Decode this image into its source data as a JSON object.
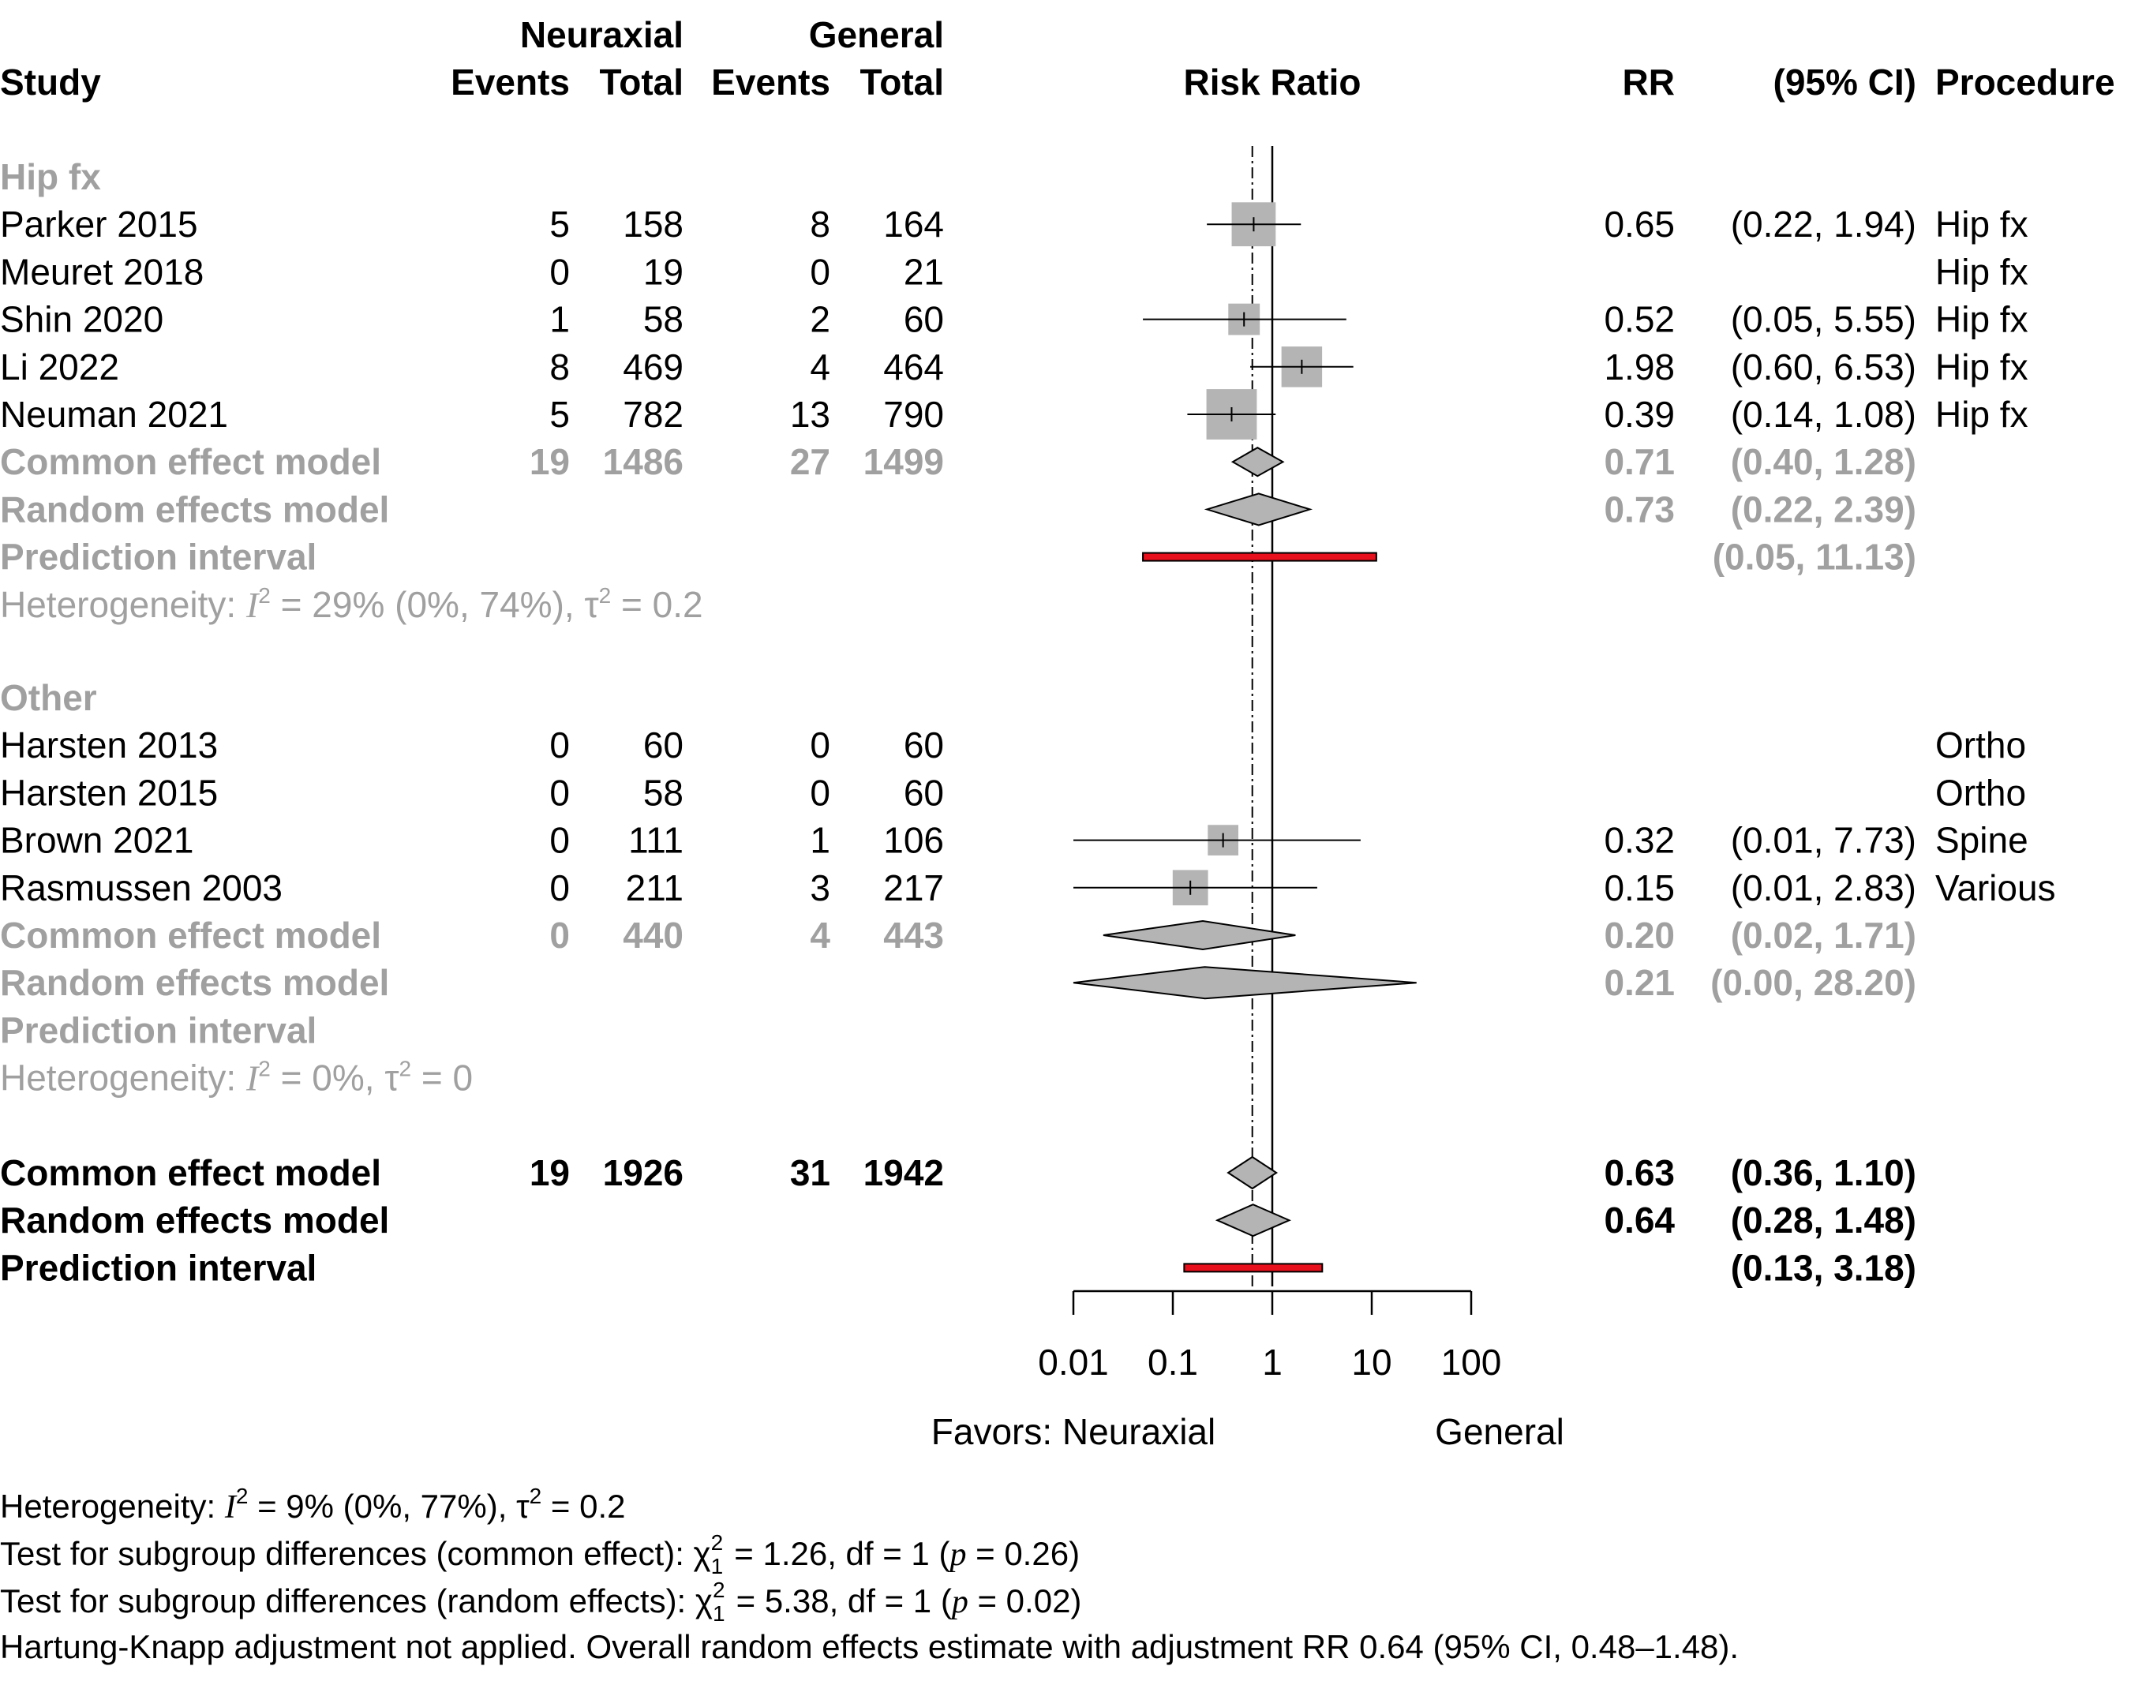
{
  "chart_data": {
    "type": "forest",
    "measure": "Risk Ratio",
    "x_scale": "log10",
    "xlim": [
      0.01,
      100
    ],
    "headers": {
      "group_a": "Neuraxial",
      "group_b": "General",
      "study": "Study",
      "events": "Events",
      "total": "Total",
      "risk_ratio": "Risk Ratio",
      "rr": "RR",
      "ci": "(95% CI)",
      "procedure": "Procedure"
    },
    "x_ticks": [
      {
        "value": 0.01,
        "label": "0.01"
      },
      {
        "value": 0.1,
        "label": "0.1"
      },
      {
        "value": 1,
        "label": "1"
      },
      {
        "value": 10,
        "label": "10"
      },
      {
        "value": 100,
        "label": "100"
      }
    ],
    "favors_left": "Favors: Neuraxial",
    "favors_right": "General",
    "reference_line": 1,
    "common_effect_line": 0.63,
    "subgroups": [
      {
        "name": "Hip fx",
        "studies": [
          {
            "study": "Parker 2015",
            "e1": "5",
            "n1": "158",
            "e2": "8",
            "n2": "164",
            "rr": 0.65,
            "lo": 0.22,
            "hi": 1.94,
            "rr_text": "0.65",
            "ci_text": "(0.22,  1.94)",
            "weight": 0.28,
            "procedure": "Hip fx"
          },
          {
            "study": "Meuret 2018",
            "e1": "0",
            "n1": "19",
            "e2": "0",
            "n2": "21",
            "rr": null,
            "lo": null,
            "hi": null,
            "rr_text": "",
            "ci_text": "",
            "weight": 0,
            "procedure": "Hip fx"
          },
          {
            "study": "Shin 2020",
            "e1": "1",
            "n1": "58",
            "e2": "2",
            "n2": "60",
            "rr": 0.52,
            "lo": 0.05,
            "hi": 5.55,
            "rr_text": "0.52",
            "ci_text": "(0.05,  5.55)",
            "weight": 0.07,
            "procedure": "Hip fx"
          },
          {
            "study": "Li 2022",
            "e1": "8",
            "n1": "469",
            "e2": "4",
            "n2": "464",
            "rr": 1.98,
            "lo": 0.6,
            "hi": 6.53,
            "rr_text": "1.98",
            "ci_text": "(0.60,  6.53)",
            "weight": 0.21,
            "procedure": "Hip fx"
          },
          {
            "study": "Neuman 2021",
            "e1": "5",
            "n1": "782",
            "e2": "13",
            "n2": "790",
            "rr": 0.39,
            "lo": 0.14,
            "hi": 1.08,
            "rr_text": "0.39",
            "ci_text": "(0.14,  1.08)",
            "weight": 0.44,
            "procedure": "Hip fx"
          }
        ],
        "common": {
          "label": "Common effect model",
          "e1": "19",
          "n1": "1486",
          "e2": "27",
          "n2": "1499",
          "rr": 0.71,
          "lo": 0.4,
          "hi": 1.28,
          "rr_text": "0.71",
          "ci_text": "(0.40,  1.28)"
        },
        "random": {
          "label": "Random effects model",
          "rr": 0.73,
          "lo": 0.22,
          "hi": 2.39,
          "rr_text": "0.73",
          "ci_text": "(0.22,  2.39)"
        },
        "prediction": {
          "label": "Prediction interval",
          "lo": 0.05,
          "hi": 11.13,
          "ci_text": "(0.05, 11.13)"
        },
        "heterogeneity": {
          "prefix": "Heterogeneity: ",
          "I2_text": " = 29% (0%, 74%), ",
          "tau2_text": " = 0.2"
        }
      },
      {
        "name": "Other",
        "studies": [
          {
            "study": "Harsten 2013",
            "e1": "0",
            "n1": "60",
            "e2": "0",
            "n2": "60",
            "rr": null,
            "lo": null,
            "hi": null,
            "rr_text": "",
            "ci_text": "",
            "weight": 0,
            "procedure": "Ortho"
          },
          {
            "study": "Harsten 2015",
            "e1": "0",
            "n1": "58",
            "e2": "0",
            "n2": "60",
            "rr": null,
            "lo": null,
            "hi": null,
            "rr_text": "",
            "ci_text": "",
            "weight": 0,
            "procedure": "Ortho"
          },
          {
            "study": "Brown 2021",
            "e1": "0",
            "n1": "111",
            "e2": "1",
            "n2": "106",
            "rr": 0.32,
            "lo": 0.01,
            "hi": 7.73,
            "rr_text": "0.32",
            "ci_text": "(0.01,  7.73)",
            "weight": 0.06,
            "procedure": "Spine"
          },
          {
            "study": "Rasmussen 2003",
            "e1": "0",
            "n1": "211",
            "e2": "3",
            "n2": "217",
            "rr": 0.15,
            "lo": 0.01,
            "hi": 2.83,
            "rr_text": "0.15",
            "ci_text": "(0.01,  2.83)",
            "weight": 0.12,
            "procedure": "Various"
          }
        ],
        "common": {
          "label": "Common effect model",
          "e1": "0",
          "n1": "440",
          "e2": "4",
          "n2": "443",
          "rr": 0.2,
          "lo": 0.02,
          "hi": 1.71,
          "rr_text": "0.20",
          "ci_text": "(0.02,  1.71)"
        },
        "random": {
          "label": "Random effects model",
          "rr": 0.21,
          "lo": 0.00158,
          "hi": 28.2,
          "rr_text": "0.21",
          "ci_text": "(0.00, 28.20)"
        },
        "prediction": {
          "label": "Prediction interval",
          "lo": null,
          "hi": null,
          "ci_text": ""
        },
        "heterogeneity": {
          "prefix": "Heterogeneity: ",
          "I2_text": " = 0%, ",
          "tau2_text": " = 0"
        }
      }
    ],
    "overall": {
      "common": {
        "label": "Common effect model",
        "e1": "19",
        "n1": "1926",
        "e2": "31",
        "n2": "1942",
        "rr": 0.63,
        "lo": 0.36,
        "hi": 1.1,
        "rr_text": "0.63",
        "ci_text": "(0.36,  1.10)"
      },
      "random": {
        "label": "Random effects model",
        "rr": 0.64,
        "lo": 0.28,
        "hi": 1.48,
        "rr_text": "0.64",
        "ci_text": "(0.28,  1.48)"
      },
      "prediction": {
        "label": "Prediction interval",
        "lo": 0.13,
        "hi": 3.18,
        "ci_text": "(0.13,  3.18)"
      }
    },
    "colors": {
      "square": "#b4b4b4",
      "diamond": "#b4b4b4",
      "prediction": "#e8101c",
      "grey_text": "#a0a0a0"
    }
  },
  "footnotes": {
    "heterogeneity": {
      "prefix": "Heterogeneity: ",
      "I2_text": " = 9% (0%, 77%), ",
      "tau2_text": " = 0.2"
    },
    "test_common": {
      "prefix": "Test for subgroup differences (common effect): ",
      "stat": " = 1.26, df = 1 (",
      "p": " = 0.26)"
    },
    "test_random": {
      "prefix": "Test for subgroup differences (random effects): ",
      "stat": " = 5.38, df = 1 (",
      "p": " = 0.02)"
    },
    "hartung": "Hartung-Knapp adjustment not applied. Overall random effects estimate with adjustment RR 0.64 (95% CI, 0.48–1.48)."
  }
}
